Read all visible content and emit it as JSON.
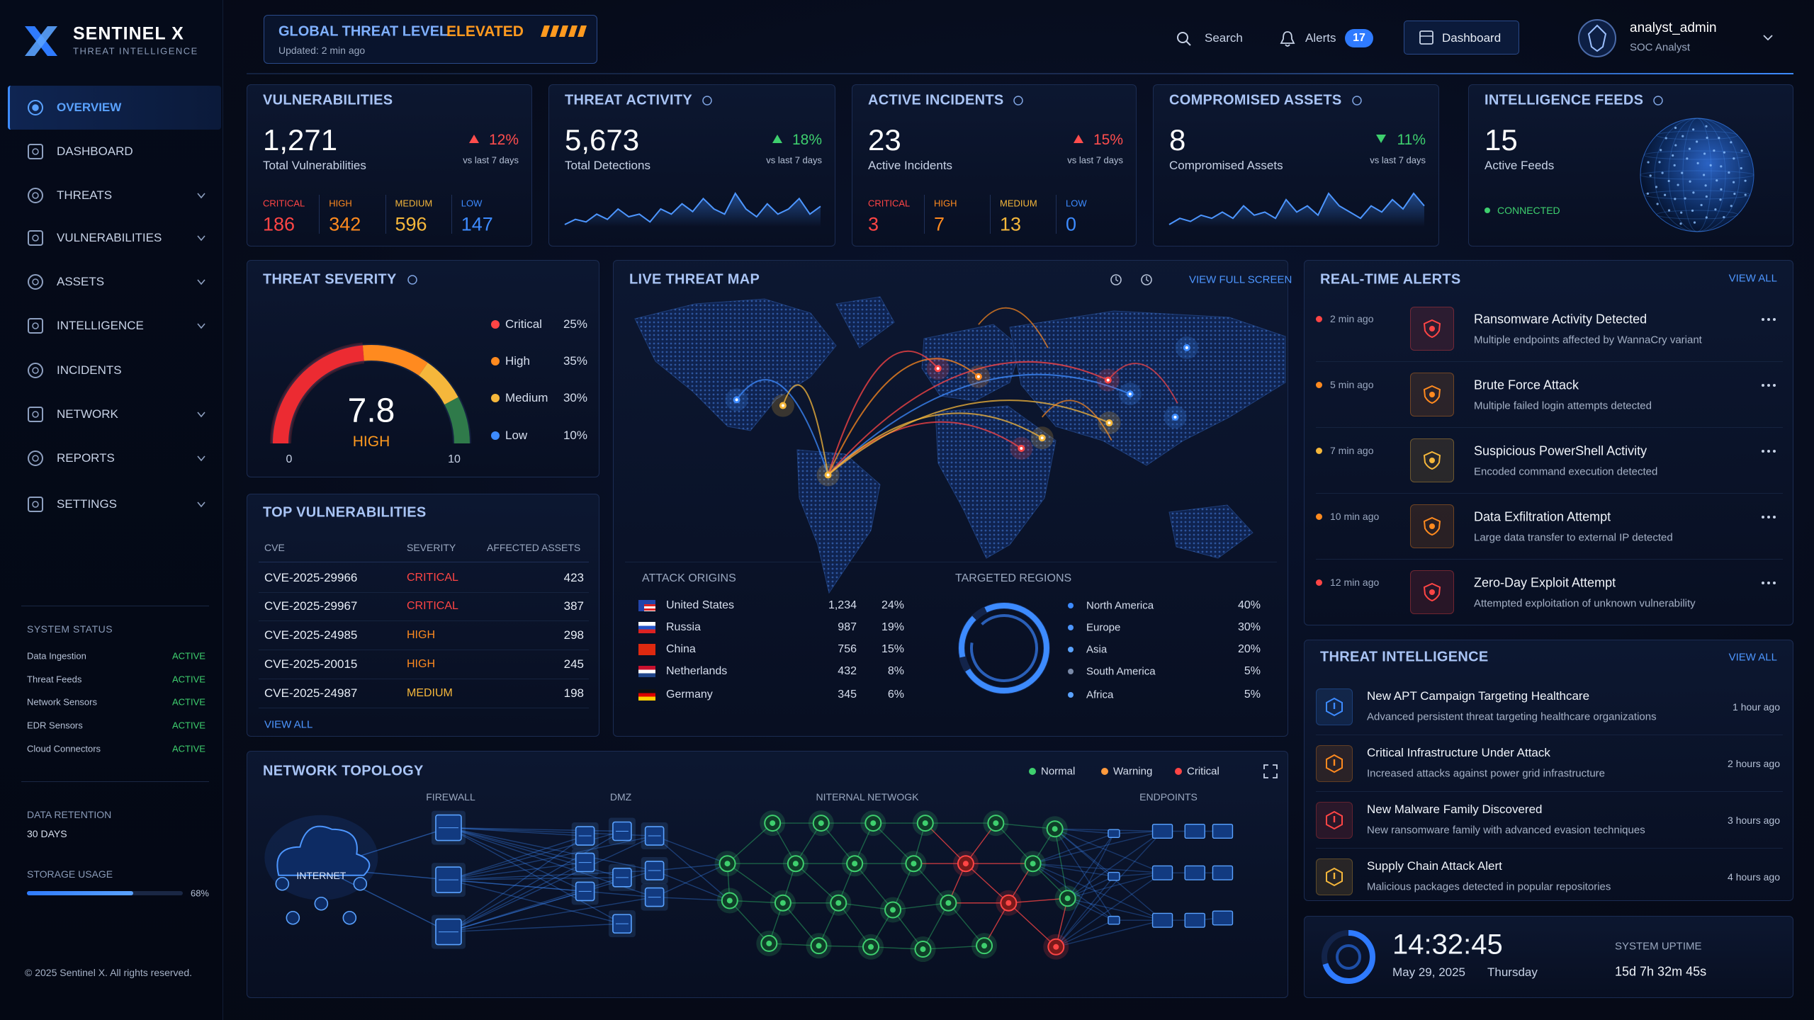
{
  "brand": {
    "name": "SENTINEL X",
    "tagline": "THREAT INTELLIGENCE"
  },
  "threat_level": {
    "label": "GLOBAL THREAT LEVEL",
    "level": "ELEVATED",
    "updated": "Updated: 2 min ago"
  },
  "topbar": {
    "search": "Search",
    "alerts": "Alerts",
    "alerts_count": 17,
    "dashboard": "Dashboard",
    "user": {
      "name": "analyst_admin",
      "role": "SOC Analyst"
    }
  },
  "nav": [
    {
      "label": "OVERVIEW",
      "active": true,
      "expandable": false
    },
    {
      "label": "DASHBOARD",
      "active": false,
      "expandable": false
    },
    {
      "label": "THREATS",
      "active": false,
      "expandable": true
    },
    {
      "label": "VULNERABILITIES",
      "active": false,
      "expandable": true
    },
    {
      "label": "ASSETS",
      "active": false,
      "expandable": true
    },
    {
      "label": "INTELLIGENCE",
      "active": false,
      "expandable": true
    },
    {
      "label": "INCIDENTS",
      "active": false,
      "expandable": false
    },
    {
      "label": "NETWORK",
      "active": false,
      "expandable": true
    },
    {
      "label": "REPORTS",
      "active": false,
      "expandable": true
    },
    {
      "label": "SETTINGS",
      "active": false,
      "expandable": true
    }
  ],
  "system_status": {
    "title": "SYSTEM STATUS",
    "items": [
      {
        "name": "Data Ingestion",
        "status": "ACTIVE"
      },
      {
        "name": "Threat Feeds",
        "status": "ACTIVE"
      },
      {
        "name": "Network Sensors",
        "status": "ACTIVE"
      },
      {
        "name": "EDR Sensors",
        "status": "ACTIVE"
      },
      {
        "name": "Cloud Connectors",
        "status": "ACTIVE"
      }
    ]
  },
  "data_retention": {
    "label": "DATA RETENTION",
    "value": "30 DAYS"
  },
  "storage": {
    "label": "STORAGE USAGE",
    "value": 68,
    "value_label": "68%"
  },
  "footer": "© 2025 Sentinel X. All rights reserved.",
  "kpis": [
    {
      "title": "VULNERABILITIES",
      "value": "1,271",
      "caption": "Total Vulnerabilities",
      "change": "12%",
      "direction": "up",
      "change_color": "#ff4d4d",
      "period": "vs last 7 days",
      "breakdown": [
        {
          "label": "CRITICAL",
          "value": 186
        },
        {
          "label": "HIGH",
          "value": 342
        },
        {
          "label": "MEDIUM",
          "value": 596
        },
        {
          "label": "LOW",
          "value": 147
        }
      ]
    },
    {
      "title": "THREAT ACTIVITY",
      "value": "5,673",
      "caption": "Total Detections",
      "change": "18%",
      "direction": "up",
      "change_color": "#3ecf6e",
      "period": "vs last 7 days",
      "sparkline": [
        3,
        4,
        3.5,
        5,
        4,
        6,
        4.5,
        5,
        3.5,
        6,
        5,
        7,
        5.5,
        8,
        6,
        5,
        9,
        6,
        4.5,
        7,
        5,
        6,
        8,
        5,
        6.5
      ]
    },
    {
      "title": "ACTIVE INCIDENTS",
      "value": "23",
      "caption": "Active Incidents",
      "change": "15%",
      "direction": "up",
      "change_color": "#ff4d4d",
      "period": "vs last 7 days",
      "breakdown": [
        {
          "label": "CRITICAL",
          "value": 3
        },
        {
          "label": "HIGH",
          "value": 7
        },
        {
          "label": "MEDIUM",
          "value": 13
        },
        {
          "label": "LOW",
          "value": 0
        }
      ]
    },
    {
      "title": "COMPROMISED ASSETS",
      "value": "8",
      "caption": "Compromised Assets",
      "change": "11%",
      "direction": "down",
      "change_color": "#3ecf6e",
      "period": "vs last 7 days",
      "sparkline": [
        3,
        4,
        3.5,
        4.5,
        4,
        5,
        4,
        6,
        4.5,
        5,
        4,
        7,
        5,
        6,
        4.5,
        8,
        6,
        5,
        4,
        6,
        5,
        7,
        5.5,
        8,
        6
      ]
    },
    {
      "title": "INTELLIGENCE FEEDS",
      "value": "15",
      "caption": "Active Feeds",
      "status": "CONNECTED"
    }
  ],
  "severity": {
    "title": "THREAT SEVERITY",
    "score": "7.8",
    "level": "HIGH",
    "min": "0",
    "max": "10",
    "legend": [
      {
        "name": "Critical",
        "share": "25%",
        "color": "#ff4545"
      },
      {
        "name": "High",
        "share": "35%",
        "color": "#ff8a1f"
      },
      {
        "name": "Medium",
        "share": "30%",
        "color": "#f5b73b"
      },
      {
        "name": "Low",
        "share": "10%",
        "color": "#3d8bff"
      }
    ]
  },
  "top_vulnerabilities": {
    "title": "TOP VULNERABILITIES",
    "columns": [
      "CVE",
      "SEVERITY",
      "AFFECTED ASSETS"
    ],
    "rows": [
      [
        "CVE-2025-29966",
        "CRITICAL",
        423
      ],
      [
        "CVE-2025-29967",
        "CRITICAL",
        387
      ],
      [
        "CVE-2025-24985",
        "HIGH",
        298
      ],
      [
        "CVE-2025-20015",
        "HIGH",
        245
      ],
      [
        "CVE-2025-24987",
        "MEDIUM",
        198
      ]
    ],
    "view_all": "VIEW ALL"
  },
  "threat_map": {
    "title": "LIVE THREAT MAP",
    "view_full": "VIEW FULL SCREEN",
    "attack_origins": {
      "title": "ATTACK ORIGINS",
      "rows": [
        {
          "country": "United States",
          "count": "1,234",
          "share": "24%"
        },
        {
          "country": "Russia",
          "count": "987",
          "share": "19%"
        },
        {
          "country": "China",
          "count": "756",
          "share": "15%"
        },
        {
          "country": "Netherlands",
          "count": "432",
          "share": "8%"
        },
        {
          "country": "Germany",
          "count": "345",
          "share": "6%"
        }
      ]
    },
    "targeted_regions": {
      "title": "TARGETED REGIONS",
      "rows": [
        {
          "region": "North America",
          "share": "40%"
        },
        {
          "region": "Europe",
          "share": "30%"
        },
        {
          "region": "Asia",
          "share": "20%"
        },
        {
          "region": "South America",
          "share": "5%"
        },
        {
          "region": "Africa",
          "share": "5%"
        }
      ]
    }
  },
  "alerts": {
    "title": "REAL-TIME ALERTS",
    "view_all": "VIEW ALL",
    "items": [
      {
        "time": "2 min ago",
        "title": "Ransomware Activity Detected",
        "desc": "Multiple endpoints affected by WannaCry variant",
        "color": "#ff4545"
      },
      {
        "time": "5 min ago",
        "title": "Brute Force Attack",
        "desc": "Multiple failed login attempts detected",
        "color": "#ff8a1f"
      },
      {
        "time": "7 min ago",
        "title": "Suspicious PowerShell Activity",
        "desc": "Encoded command execution detected",
        "color": "#f5b73b"
      },
      {
        "time": "10 min ago",
        "title": "Data Exfiltration Attempt",
        "desc": "Large data transfer to external IP detected",
        "color": "#ff8a1f"
      },
      {
        "time": "12 min ago",
        "title": "Zero-Day Exploit Attempt",
        "desc": "Attempted exploitation of unknown vulnerability",
        "color": "#ff4545"
      }
    ]
  },
  "intel": {
    "title": "THREAT INTELLIGENCE",
    "view_all": "VIEW ALL",
    "items": [
      {
        "title": "New APT Campaign Targeting Healthcare",
        "desc": "Advanced persistent threat targeting healthcare organizations",
        "time": "1 hour ago",
        "color": "#3d8bff"
      },
      {
        "title": "Critical Infrastructure Under Attack",
        "desc": "Increased attacks against power grid infrastructure",
        "time": "2 hours ago",
        "color": "#ff8a1f"
      },
      {
        "title": "New Malware Family Discovered",
        "desc": "New ransomware family with advanced evasion techniques",
        "time": "3 hours ago",
        "color": "#ff4545"
      },
      {
        "title": "Supply Chain Attack Alert",
        "desc": "Malicious packages detected in popular repositories",
        "time": "4 hours ago",
        "color": "#f5b73b"
      }
    ]
  },
  "clock": {
    "time": "14:32:45",
    "date": "May 29, 2025",
    "day": "Thursday",
    "uptime_label": "SYSTEM UPTIME",
    "uptime": "15d 7h 32m 45s"
  },
  "topology": {
    "title": "NETWORK TOPOLOGY",
    "legend": [
      {
        "name": "Normal",
        "color": "#3ecf6e"
      },
      {
        "name": "Warning",
        "color": "#ff9a3d"
      },
      {
        "name": "Critical",
        "color": "#ff4545"
      }
    ],
    "zones": [
      "FIREWALL",
      "DMZ",
      "NITERNAL NETWOGK",
      "ENDPOINTS"
    ],
    "internet": "INTERNET"
  }
}
